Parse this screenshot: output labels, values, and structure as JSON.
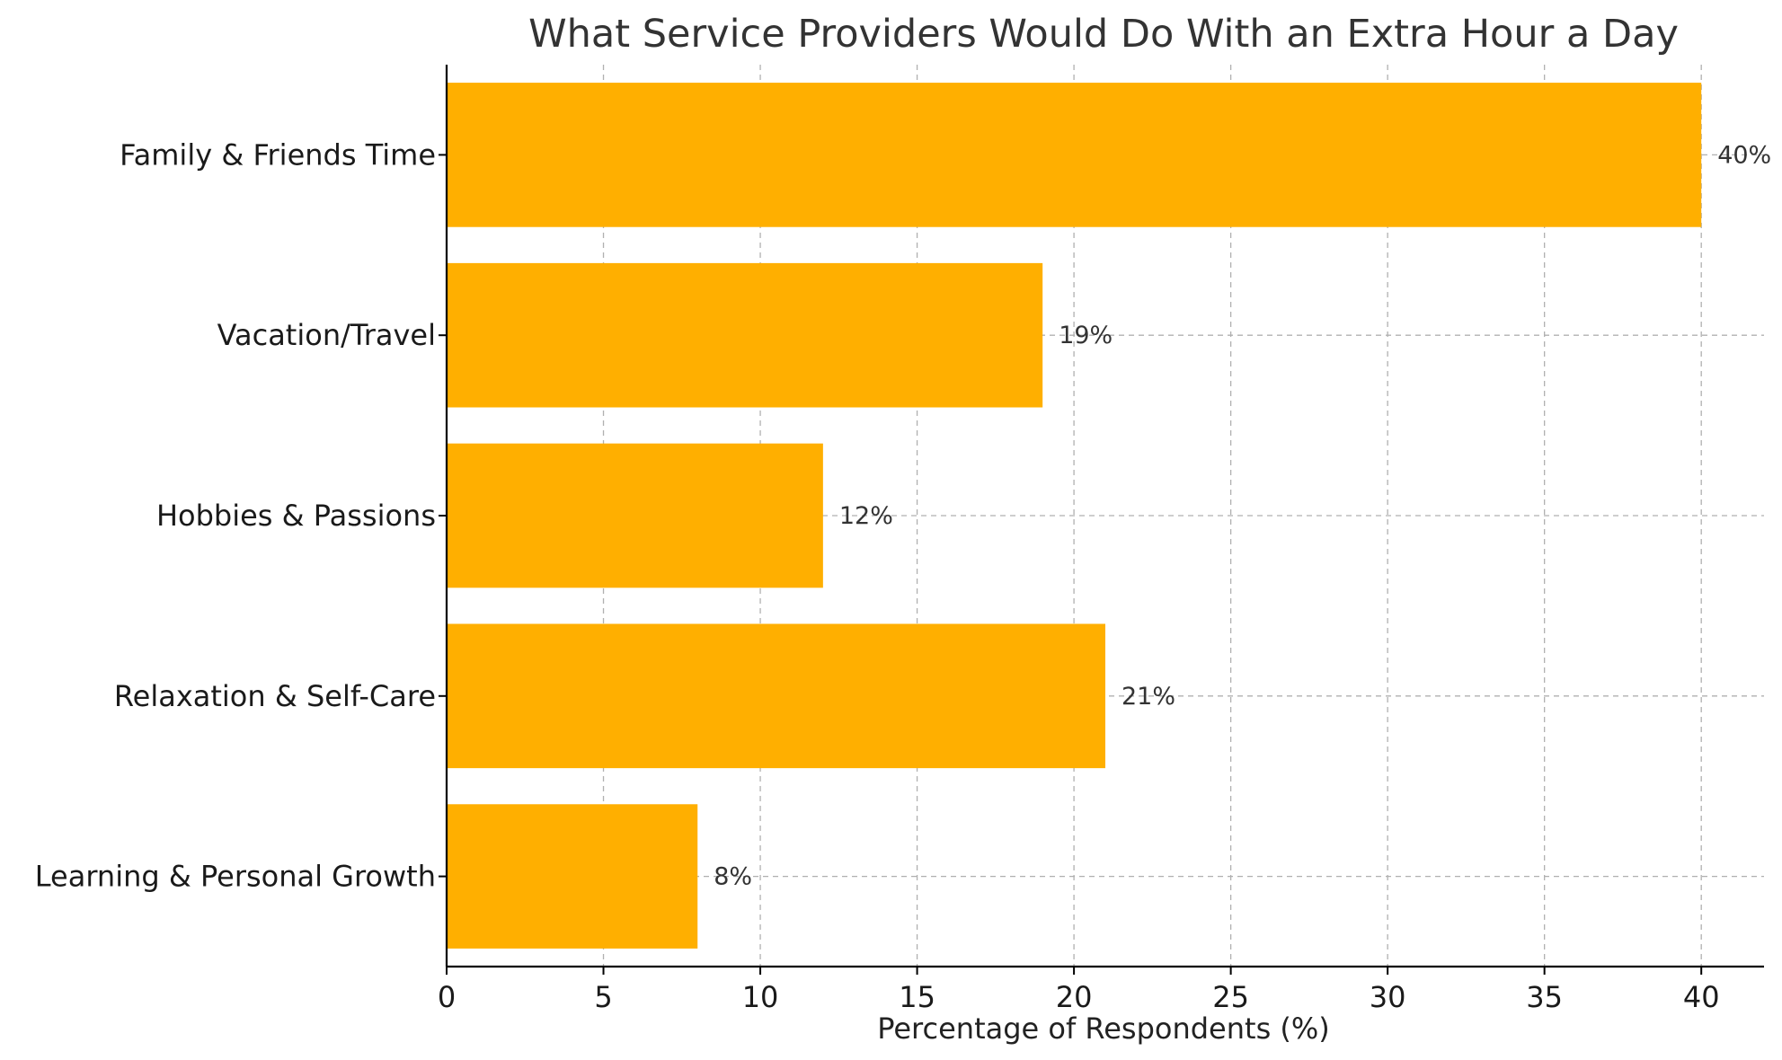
{
  "chart_data": {
    "type": "bar",
    "orientation": "horizontal",
    "title": "What Service Providers Would Do With an Extra Hour a Day",
    "xlabel": "Percentage of Respondents (%)",
    "ylabel": "",
    "categories": [
      "Family & Friends Time",
      "Vacation/Travel",
      "Hobbies & Passions",
      "Relaxation & Self-Care",
      "Learning & Personal Growth"
    ],
    "values": [
      40,
      19,
      12,
      21,
      8
    ],
    "data_labels": [
      "40%",
      "19%",
      "12%",
      "21%",
      "8%"
    ],
    "xlim": [
      0,
      42
    ],
    "xticks": [
      0,
      5,
      10,
      15,
      20,
      25,
      30,
      35,
      40
    ],
    "xtick_labels": [
      "0",
      "5",
      "10",
      "15",
      "20",
      "25",
      "30",
      "35",
      "40"
    ],
    "grid": true,
    "bar_color": "#FFAF00"
  }
}
